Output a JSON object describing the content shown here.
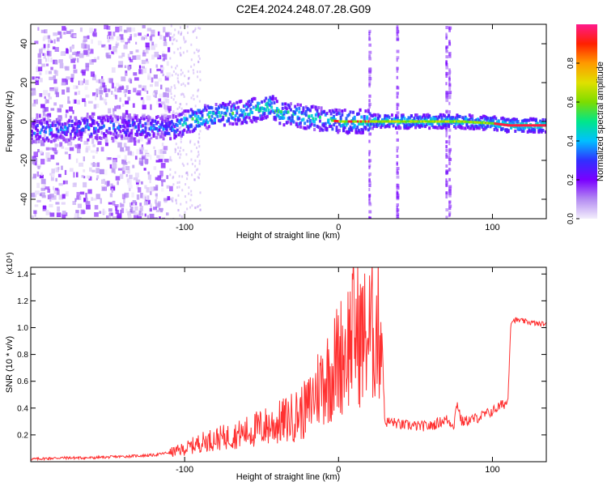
{
  "title": "C2E4.2024.248.07.28.G09",
  "chart_data": [
    {
      "type": "heatmap",
      "xlabel": "Height of straight line (km)",
      "ylabel": "Frequency (Hz)",
      "xlim": [
        -200,
        135
      ],
      "ylim": [
        -50,
        50
      ],
      "xticks": [
        -100,
        0,
        100
      ],
      "yticks": [
        -40,
        -20,
        0,
        20,
        40
      ],
      "colorbar": {
        "label": "Normalized spectral amplitude",
        "range": [
          0,
          1
        ],
        "ticks": [
          0.0,
          0.2,
          0.4,
          0.6,
          0.8
        ],
        "colors": [
          "#f3eefc",
          "#b48cf2",
          "#7a00ff",
          "#3030ff",
          "#00c0ff",
          "#00e68a",
          "#7ddc00",
          "#e0e000",
          "#ff9a00",
          "#ff2000",
          "#ff1a8c"
        ]
      },
      "ridge": {
        "x": [
          -200,
          -180,
          -160,
          -140,
          -120,
          -105,
          -100,
          -90,
          -80,
          -70,
          -60,
          -50,
          -45,
          -40,
          -30,
          -20,
          -10,
          0,
          10,
          20,
          30,
          40,
          60,
          80,
          100,
          110,
          135
        ],
        "y": [
          -5,
          -4,
          -3,
          -3,
          -3,
          -3,
          0,
          2,
          3,
          4,
          5,
          7,
          8,
          5,
          3,
          2,
          1,
          0,
          0,
          0,
          0,
          0,
          0,
          0,
          -1,
          -2,
          -2
        ]
      },
      "streaks_x": [
        20,
        38,
        70,
        72
      ]
    },
    {
      "type": "line",
      "xlabel": "Height of straight line (km)",
      "ylabel": "SNR (10 * v/v)",
      "y_multiplier": "(x10⁴)",
      "xlim": [
        -200,
        135
      ],
      "ylim": [
        0,
        1.45
      ],
      "xticks": [
        -100,
        0,
        100
      ],
      "yticks": [
        0.2,
        0.4,
        0.6,
        0.8,
        1.0,
        1.2,
        1.4
      ],
      "color": "#ff3030",
      "series": [
        {
          "x": [
            -200,
            -180,
            -160,
            -140,
            -120,
            -110,
            -100,
            -90,
            -80,
            -70,
            -60,
            -50,
            -40,
            -30,
            -20,
            -15,
            -10,
            -5,
            0,
            5,
            10,
            15,
            20,
            25,
            28,
            30,
            35,
            40,
            50,
            60,
            70,
            72,
            75,
            77,
            80,
            90,
            100,
            105,
            110,
            112,
            115,
            120,
            125,
            130,
            135
          ],
          "y": [
            0.02,
            0.03,
            0.03,
            0.04,
            0.05,
            0.07,
            0.1,
            0.15,
            0.18,
            0.2,
            0.23,
            0.27,
            0.3,
            0.35,
            0.42,
            0.55,
            0.65,
            0.7,
            0.82,
            0.9,
            1.05,
            0.98,
            1.0,
            1.05,
            1.05,
            0.3,
            0.3,
            0.28,
            0.27,
            0.27,
            0.32,
            0.3,
            0.28,
            0.45,
            0.3,
            0.33,
            0.38,
            0.42,
            0.45,
            1.05,
            1.06,
            1.05,
            1.04,
            1.03,
            1.03
          ]
        }
      ]
    }
  ]
}
